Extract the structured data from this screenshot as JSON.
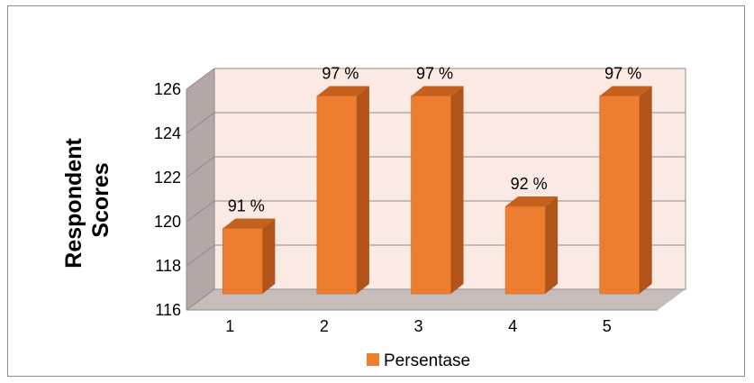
{
  "chart_data": {
    "type": "bar",
    "categories": [
      "1",
      "2",
      "3",
      "4",
      "5"
    ],
    "series": [
      {
        "name": "Persentase",
        "values": [
          119,
          125,
          125,
          120,
          125
        ],
        "data_labels": [
          "91 %",
          "97 %",
          "97 %",
          "92 %",
          "97 %"
        ]
      }
    ],
    "ylabel_lines": [
      "Respondent",
      "Scores"
    ],
    "ylim": [
      116,
      126
    ],
    "yticks": [
      "116",
      "118",
      "120",
      "122",
      "124",
      "126"
    ],
    "grid": true,
    "legend": "bottom",
    "colors": {
      "bar_front": "#ED7D31",
      "bar_side": "#B2531A",
      "bar_top": "#C4611F",
      "back_wall": "#FBE9E3",
      "side_wall": "#B3A8A6",
      "floor": "#C7BCBA",
      "gridline": "#8C8C8C"
    }
  }
}
